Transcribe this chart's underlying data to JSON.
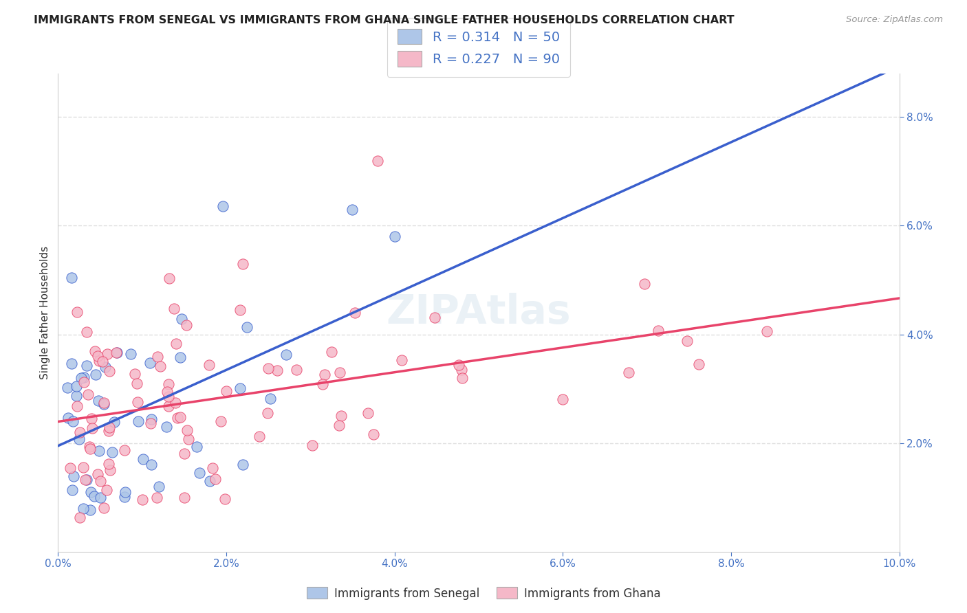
{
  "title": "IMMIGRANTS FROM SENEGAL VS IMMIGRANTS FROM GHANA SINGLE FATHER HOUSEHOLDS CORRELATION CHART",
  "source": "Source: ZipAtlas.com",
  "ylabel": "Single Father Households",
  "xlim": [
    0.0,
    0.1
  ],
  "ylim": [
    0.0,
    0.088
  ],
  "xticks": [
    0.0,
    0.02,
    0.04,
    0.06,
    0.08,
    0.1
  ],
  "xtick_labels": [
    "0.0%",
    "2.0%",
    "4.0%",
    "6.0%",
    "8.0%",
    "10.0%"
  ],
  "ytick_labels_right": [
    "2.0%",
    "4.0%",
    "6.0%",
    "8.0%"
  ],
  "yticks_right": [
    0.02,
    0.04,
    0.06,
    0.08
  ],
  "senegal_color": "#aec6e8",
  "ghana_color": "#f5b8c8",
  "senegal_R": 0.314,
  "senegal_N": 50,
  "ghana_R": 0.227,
  "ghana_N": 90,
  "trend_senegal_color": "#3a5fcd",
  "trend_ghana_color": "#e8436a",
  "background_color": "#ffffff",
  "grid_color": "#d8d8d8",
  "watermark": "ZIPAtlas",
  "legend_R_N_color": "#4472c4",
  "title_fontsize": 11.5,
  "tick_fontsize": 11,
  "ylabel_fontsize": 11
}
